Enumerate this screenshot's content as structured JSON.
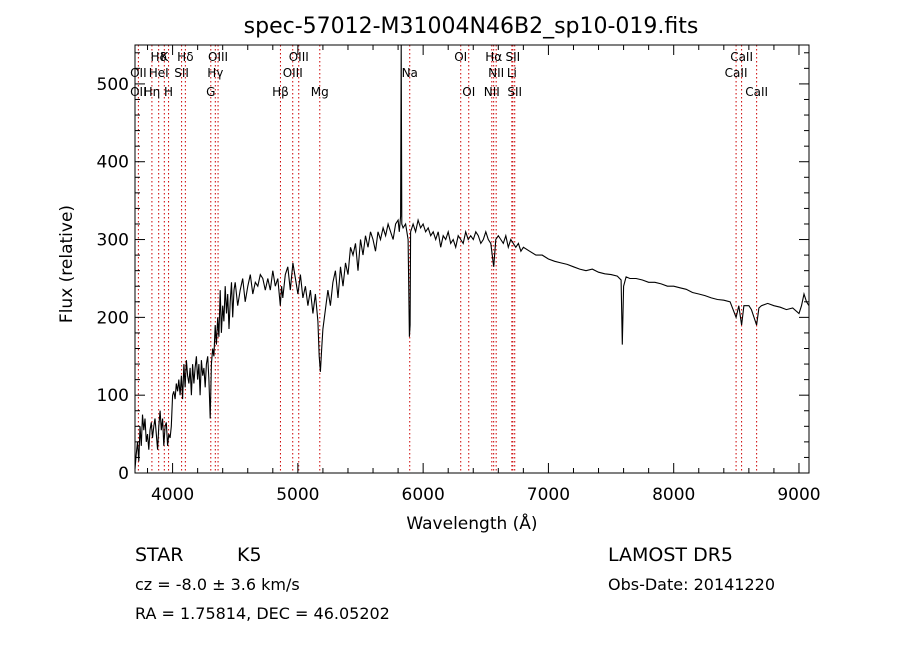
{
  "chart_data": {
    "type": "line",
    "title": "spec-57012-M31004N46B2_sp10-019.fits",
    "xlabel": "Wavelength (Å)",
    "ylabel": "Flux (relative)",
    "xlim": [
      3700,
      9080
    ],
    "ylim": [
      0,
      550
    ],
    "xticks": [
      4000,
      5000,
      6000,
      7000,
      8000,
      9000
    ],
    "yticks": [
      0,
      100,
      200,
      300,
      400,
      500
    ],
    "x_tick_labels": [
      "4000",
      "5000",
      "6000",
      "7000",
      "8000",
      "9000"
    ],
    "y_tick_labels": [
      "0",
      "100",
      "200",
      "300",
      "400",
      "500"
    ],
    "series": [
      {
        "values": [
          [
            3700,
            5
          ],
          [
            3710,
            25
          ],
          [
            3720,
            40
          ],
          [
            3730,
            15
          ],
          [
            3740,
            60
          ],
          [
            3750,
            35
          ],
          [
            3760,
            75
          ],
          [
            3770,
            55
          ],
          [
            3780,
            70
          ],
          [
            3790,
            40
          ],
          [
            3800,
            50
          ],
          [
            3810,
            30
          ],
          [
            3820,
            55
          ],
          [
            3830,
            65
          ],
          [
            3840,
            45
          ],
          [
            3850,
            60
          ],
          [
            3860,
            70
          ],
          [
            3870,
            50
          ],
          [
            3880,
            30
          ],
          [
            3890,
            60
          ],
          [
            3900,
            80
          ],
          [
            3910,
            55
          ],
          [
            3920,
            70
          ],
          [
            3930,
            35
          ],
          [
            3940,
            60
          ],
          [
            3950,
            65
          ],
          [
            3960,
            35
          ],
          [
            3970,
            50
          ],
          [
            3980,
            45
          ],
          [
            3990,
            60
          ],
          [
            4000,
            100
          ],
          [
            4010,
            105
          ],
          [
            4020,
            95
          ],
          [
            4030,
            115
          ],
          [
            4040,
            105
          ],
          [
            4050,
            120
          ],
          [
            4060,
            100
          ],
          [
            4070,
            125
          ],
          [
            4080,
            95
          ],
          [
            4090,
            140
          ],
          [
            4100,
            110
          ],
          [
            4110,
            145
          ],
          [
            4120,
            125
          ],
          [
            4130,
            115
          ],
          [
            4140,
            135
          ],
          [
            4150,
            100
          ],
          [
            4160,
            140
          ],
          [
            4170,
            115
          ],
          [
            4180,
            135
          ],
          [
            4190,
            150
          ],
          [
            4200,
            120
          ],
          [
            4210,
            140
          ],
          [
            4220,
            100
          ],
          [
            4230,
            145
          ],
          [
            4240,
            125
          ],
          [
            4250,
            135
          ],
          [
            4260,
            110
          ],
          [
            4270,
            140
          ],
          [
            4280,
            150
          ],
          [
            4290,
            120
          ],
          [
            4300,
            70
          ],
          [
            4310,
            140
          ],
          [
            4320,
            160
          ],
          [
            4330,
            150
          ],
          [
            4340,
            190
          ],
          [
            4350,
            165
          ],
          [
            4360,
            200
          ],
          [
            4370,
            175
          ],
          [
            4380,
            235
          ],
          [
            4390,
            180
          ],
          [
            4400,
            215
          ],
          [
            4410,
            195
          ],
          [
            4420,
            240
          ],
          [
            4430,
            205
          ],
          [
            4440,
            230
          ],
          [
            4450,
            185
          ],
          [
            4460,
            220
          ],
          [
            4470,
            245
          ],
          [
            4480,
            200
          ],
          [
            4490,
            235
          ],
          [
            4500,
            245
          ],
          [
            4520,
            215
          ],
          [
            4540,
            235
          ],
          [
            4560,
            250
          ],
          [
            4580,
            220
          ],
          [
            4600,
            240
          ],
          [
            4620,
            255
          ],
          [
            4640,
            230
          ],
          [
            4660,
            245
          ],
          [
            4680,
            240
          ],
          [
            4700,
            255
          ],
          [
            4720,
            250
          ],
          [
            4740,
            235
          ],
          [
            4760,
            250
          ],
          [
            4780,
            235
          ],
          [
            4800,
            260
          ],
          [
            4820,
            240
          ],
          [
            4840,
            250
          ],
          [
            4860,
            215
          ],
          [
            4870,
            240
          ],
          [
            4880,
            225
          ],
          [
            4900,
            255
          ],
          [
            4920,
            265
          ],
          [
            4940,
            235
          ],
          [
            4960,
            270
          ],
          [
            4980,
            250
          ],
          [
            5000,
            230
          ],
          [
            5020,
            255
          ],
          [
            5040,
            225
          ],
          [
            5060,
            240
          ],
          [
            5080,
            215
          ],
          [
            5100,
            235
          ],
          [
            5120,
            205
          ],
          [
            5140,
            230
          ],
          [
            5160,
            195
          ],
          [
            5170,
            150
          ],
          [
            5180,
            130
          ],
          [
            5190,
            160
          ],
          [
            5200,
            185
          ],
          [
            5220,
            210
          ],
          [
            5240,
            235
          ],
          [
            5260,
            215
          ],
          [
            5280,
            245
          ],
          [
            5300,
            260
          ],
          [
            5320,
            225
          ],
          [
            5340,
            265
          ],
          [
            5360,
            240
          ],
          [
            5380,
            270
          ],
          [
            5400,
            255
          ],
          [
            5420,
            290
          ],
          [
            5440,
            280
          ],
          [
            5460,
            295
          ],
          [
            5480,
            260
          ],
          [
            5500,
            300
          ],
          [
            5520,
            280
          ],
          [
            5540,
            305
          ],
          [
            5560,
            290
          ],
          [
            5580,
            310
          ],
          [
            5600,
            300
          ],
          [
            5620,
            285
          ],
          [
            5640,
            310
          ],
          [
            5660,
            300
          ],
          [
            5680,
            315
          ],
          [
            5700,
            305
          ],
          [
            5720,
            320
          ],
          [
            5740,
            310
          ],
          [
            5760,
            300
          ],
          [
            5780,
            320
          ],
          [
            5800,
            325
          ],
          [
            5810,
            310
          ],
          [
            5820,
            330
          ],
          [
            5825,
            560
          ],
          [
            5830,
            320
          ],
          [
            5840,
            315
          ],
          [
            5860,
            320
          ],
          [
            5880,
            300
          ],
          [
            5890,
            175
          ],
          [
            5896,
            190
          ],
          [
            5900,
            310
          ],
          [
            5920,
            320
          ],
          [
            5940,
            310
          ],
          [
            5960,
            325
          ],
          [
            5980,
            315
          ],
          [
            6000,
            320
          ],
          [
            6020,
            310
          ],
          [
            6040,
            315
          ],
          [
            6060,
            305
          ],
          [
            6080,
            310
          ],
          [
            6100,
            300
          ],
          [
            6120,
            310
          ],
          [
            6140,
            290
          ],
          [
            6160,
            305
          ],
          [
            6180,
            300
          ],
          [
            6200,
            310
          ],
          [
            6220,
            295
          ],
          [
            6240,
            300
          ],
          [
            6260,
            290
          ],
          [
            6280,
            305
          ],
          [
            6300,
            300
          ],
          [
            6320,
            295
          ],
          [
            6340,
            310
          ],
          [
            6360,
            300
          ],
          [
            6380,
            305
          ],
          [
            6400,
            300
          ],
          [
            6420,
            310
          ],
          [
            6440,
            305
          ],
          [
            6460,
            295
          ],
          [
            6480,
            300
          ],
          [
            6500,
            310
          ],
          [
            6520,
            300
          ],
          [
            6540,
            295
          ],
          [
            6563,
            265
          ],
          [
            6580,
            300
          ],
          [
            6600,
            305
          ],
          [
            6620,
            300
          ],
          [
            6640,
            295
          ],
          [
            6660,
            305
          ],
          [
            6680,
            290
          ],
          [
            6700,
            300
          ],
          [
            6720,
            295
          ],
          [
            6740,
            290
          ],
          [
            6760,
            295
          ],
          [
            6780,
            285
          ],
          [
            6800,
            290
          ],
          [
            6850,
            285
          ],
          [
            6900,
            280
          ],
          [
            6950,
            280
          ],
          [
            7000,
            275
          ],
          [
            7050,
            272
          ],
          [
            7100,
            270
          ],
          [
            7150,
            268
          ],
          [
            7200,
            265
          ],
          [
            7250,
            262
          ],
          [
            7300,
            260
          ],
          [
            7350,
            262
          ],
          [
            7400,
            258
          ],
          [
            7450,
            256
          ],
          [
            7500,
            255
          ],
          [
            7550,
            253
          ],
          [
            7580,
            248
          ],
          [
            7590,
            165
          ],
          [
            7600,
            240
          ],
          [
            7620,
            252
          ],
          [
            7650,
            250
          ],
          [
            7700,
            250
          ],
          [
            7750,
            248
          ],
          [
            7800,
            245
          ],
          [
            7850,
            245
          ],
          [
            7900,
            243
          ],
          [
            7950,
            240
          ],
          [
            8000,
            240
          ],
          [
            8050,
            238
          ],
          [
            8100,
            236
          ],
          [
            8150,
            232
          ],
          [
            8200,
            230
          ],
          [
            8250,
            228
          ],
          [
            8300,
            225
          ],
          [
            8350,
            223
          ],
          [
            8400,
            222
          ],
          [
            8450,
            220
          ],
          [
            8498,
            200
          ],
          [
            8520,
            215
          ],
          [
            8542,
            190
          ],
          [
            8560,
            215
          ],
          [
            8600,
            215
          ],
          [
            8620,
            210
          ],
          [
            8662,
            190
          ],
          [
            8680,
            212
          ],
          [
            8700,
            215
          ],
          [
            8750,
            218
          ],
          [
            8800,
            215
          ],
          [
            8850,
            213
          ],
          [
            8900,
            210
          ],
          [
            8950,
            212
          ],
          [
            9000,
            205
          ],
          [
            9020,
            215
          ],
          [
            9040,
            230
          ],
          [
            9060,
            220
          ],
          [
            9080,
            215
          ]
        ]
      }
    ],
    "lines": [
      {
        "label": "Hδ",
        "x": 3889,
        "row": 0
      },
      {
        "label": "OII",
        "x": 3727,
        "row": 1
      },
      {
        "label": "HeI",
        "x": 3889,
        "row": 1
      },
      {
        "label": "OII",
        "x": 3727,
        "row": 2
      },
      {
        "label": "Hη",
        "x": 3835,
        "row": 2
      },
      {
        "label": "K",
        "x": 3934,
        "row": 0
      },
      {
        "label": "H",
        "x": 3968,
        "row": 2
      },
      {
        "label": "Hδ",
        "x": 4102,
        "row": 0
      },
      {
        "label": "SII",
        "x": 4072,
        "row": 1
      },
      {
        "label": "OIII",
        "x": 4363,
        "row": 0
      },
      {
        "label": "Hγ",
        "x": 4341,
        "row": 1
      },
      {
        "label": "G",
        "x": 4305,
        "row": 2
      },
      {
        "label": "Hβ",
        "x": 4861,
        "row": 2
      },
      {
        "label": "OIII",
        "x": 5007,
        "row": 0
      },
      {
        "label": "OIII",
        "x": 4959,
        "row": 1
      },
      {
        "label": "Mg",
        "x": 5175,
        "row": 2
      },
      {
        "label": "Na",
        "x": 5893,
        "row": 1
      },
      {
        "label": "OI",
        "x": 6300,
        "row": 0
      },
      {
        "label": "OI",
        "x": 6364,
        "row": 2
      },
      {
        "label": "Hα",
        "x": 6563,
        "row": 0
      },
      {
        "label": "SII",
        "x": 6716,
        "row": 0
      },
      {
        "label": "NII",
        "x": 6583,
        "row": 1
      },
      {
        "label": "Li",
        "x": 6708,
        "row": 1
      },
      {
        "label": "NII",
        "x": 6548,
        "row": 2
      },
      {
        "label": "SII",
        "x": 6731,
        "row": 2
      },
      {
        "label": "CaII",
        "x": 8542,
        "row": 0
      },
      {
        "label": "CaII",
        "x": 8498,
        "row": 1
      },
      {
        "label": "CaII",
        "x": 8662,
        "row": 2
      }
    ],
    "line_color": "#cc0000"
  },
  "footer": {
    "class": "STAR",
    "subclass": "K5",
    "survey": "LAMOST  DR5",
    "cz": "cz = -8.0 ± 3.6 km/s",
    "obs_date": "Obs-Date: 20141220",
    "coords": "RA =   1.75814, DEC =  46.05202"
  }
}
